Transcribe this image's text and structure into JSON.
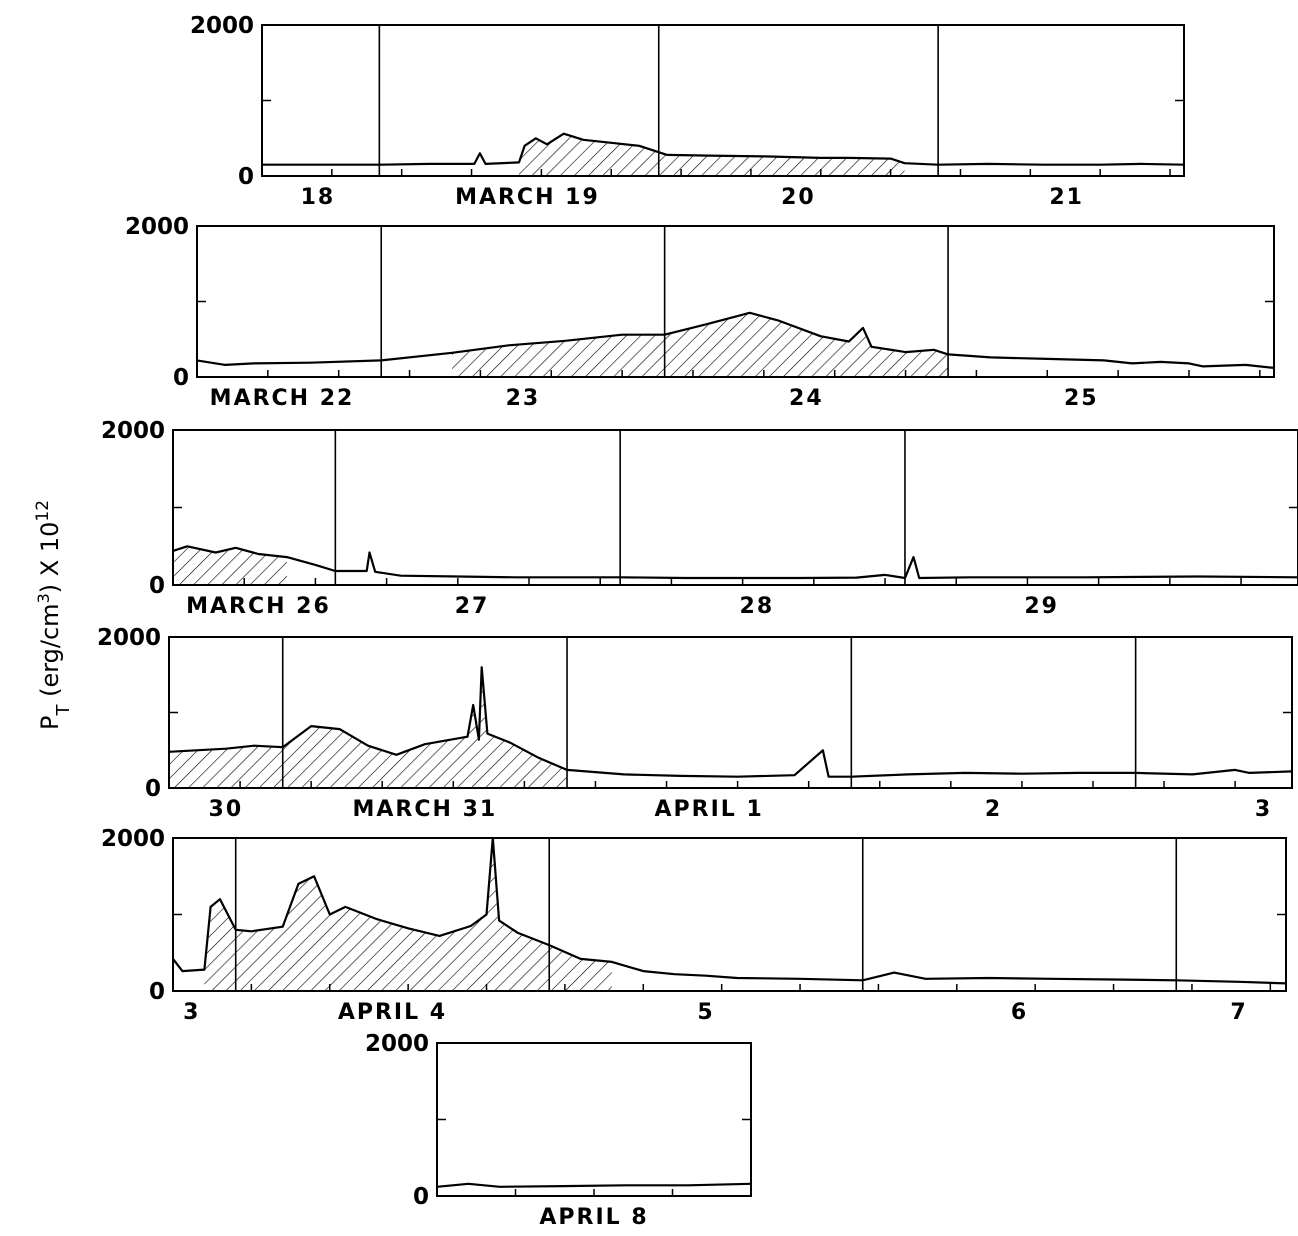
{
  "chart_data": {
    "type": "line",
    "y_axis_title": "P_T (erg/cm³) × 10¹²",
    "y_axis_title_parts": {
      "symbol": "P",
      "subscript": "T",
      "unit": " (erg/cm",
      "unit_exp": "3",
      "unit_close": ") X 10",
      "exponent": "12"
    },
    "ylim": [
      0,
      2000
    ],
    "y_tick_labels": [
      "0",
      "2000"
    ],
    "hatched_note": "shaded region beneath elevated intervals",
    "panels": [
      {
        "days": 3.3,
        "day_boundaries": [
          0.42,
          1.42,
          2.42
        ],
        "x_labels": [
          {
            "text": "18",
            "at": 0.2
          },
          {
            "text": "MARCH 19",
            "at": 0.95
          },
          {
            "text": "20",
            "at": 1.92
          },
          {
            "text": "21",
            "at": 2.88
          }
        ],
        "series": [
          [
            0,
            150
          ],
          [
            0.42,
            150
          ],
          [
            0.6,
            160
          ],
          [
            0.76,
            160
          ],
          [
            0.78,
            300
          ],
          [
            0.8,
            160
          ],
          [
            0.92,
            180
          ],
          [
            0.94,
            400
          ],
          [
            0.98,
            500
          ],
          [
            1.02,
            420
          ],
          [
            1.08,
            560
          ],
          [
            1.15,
            480
          ],
          [
            1.25,
            440
          ],
          [
            1.35,
            400
          ],
          [
            1.45,
            280
          ],
          [
            1.6,
            270
          ],
          [
            1.8,
            260
          ],
          [
            2.0,
            240
          ],
          [
            2.1,
            240
          ],
          [
            2.25,
            230
          ],
          [
            2.3,
            170
          ],
          [
            2.42,
            150
          ],
          [
            2.6,
            160
          ],
          [
            2.8,
            150
          ],
          [
            3.0,
            150
          ],
          [
            3.15,
            160
          ],
          [
            3.3,
            150
          ]
        ],
        "hatch_range": [
          0.92,
          2.3
        ]
      },
      {
        "days": 3.8,
        "day_boundaries": [
          0.65,
          1.65,
          2.65
        ],
        "x_labels": [
          {
            "text": "MARCH 22",
            "at": 0.3
          },
          {
            "text": "23",
            "at": 1.15
          },
          {
            "text": "24",
            "at": 2.15
          },
          {
            "text": "25",
            "at": 3.12
          }
        ],
        "series": [
          [
            0,
            220
          ],
          [
            0.1,
            160
          ],
          [
            0.2,
            180
          ],
          [
            0.4,
            190
          ],
          [
            0.65,
            220
          ],
          [
            0.9,
            320
          ],
          [
            1.1,
            420
          ],
          [
            1.3,
            480
          ],
          [
            1.5,
            560
          ],
          [
            1.65,
            560
          ],
          [
            1.8,
            700
          ],
          [
            1.95,
            850
          ],
          [
            2.05,
            750
          ],
          [
            2.2,
            540
          ],
          [
            2.3,
            470
          ],
          [
            2.35,
            650
          ],
          [
            2.38,
            400
          ],
          [
            2.5,
            330
          ],
          [
            2.6,
            360
          ],
          [
            2.65,
            300
          ],
          [
            2.8,
            260
          ],
          [
            3.0,
            240
          ],
          [
            3.2,
            220
          ],
          [
            3.3,
            180
          ],
          [
            3.4,
            200
          ],
          [
            3.5,
            180
          ],
          [
            3.55,
            140
          ],
          [
            3.7,
            160
          ],
          [
            3.8,
            120
          ]
        ],
        "hatch_range": [
          0.7,
          2.7
        ]
      },
      {
        "days": 3.95,
        "day_boundaries": [
          0.57,
          1.57,
          2.57
        ],
        "x_labels": [
          {
            "text": "MARCH 26",
            "at": 0.3
          },
          {
            "text": "27",
            "at": 1.05
          },
          {
            "text": "28",
            "at": 2.05
          },
          {
            "text": "29",
            "at": 3.05
          }
        ],
        "series": [
          [
            0,
            440
          ],
          [
            0.05,
            500
          ],
          [
            0.15,
            420
          ],
          [
            0.22,
            480
          ],
          [
            0.3,
            400
          ],
          [
            0.4,
            360
          ],
          [
            0.5,
            260
          ],
          [
            0.57,
            180
          ],
          [
            0.68,
            180
          ],
          [
            0.69,
            420
          ],
          [
            0.71,
            170
          ],
          [
            0.8,
            120
          ],
          [
            1.0,
            110
          ],
          [
            1.2,
            100
          ],
          [
            1.57,
            100
          ],
          [
            1.8,
            90
          ],
          [
            2.2,
            90
          ],
          [
            2.4,
            95
          ],
          [
            2.5,
            130
          ],
          [
            2.57,
            90
          ],
          [
            2.6,
            360
          ],
          [
            2.62,
            90
          ],
          [
            2.8,
            100
          ],
          [
            3.2,
            100
          ],
          [
            3.6,
            110
          ],
          [
            3.95,
            100
          ]
        ],
        "hatch_range": [
          0.0,
          0.45
        ]
      },
      {
        "days": 3.95,
        "day_boundaries": [
          0.4,
          1.4,
          2.4,
          3.4
        ],
        "x_labels": [
          {
            "text": "30",
            "at": 0.2
          },
          {
            "text": "MARCH 31",
            "at": 0.9
          },
          {
            "text": "APRIL 1",
            "at": 1.9
          },
          {
            "text": "2",
            "at": 2.9
          },
          {
            "text": "3",
            "at": 3.85
          }
        ],
        "series": [
          [
            0,
            480
          ],
          [
            0.2,
            520
          ],
          [
            0.3,
            560
          ],
          [
            0.4,
            540
          ],
          [
            0.5,
            820
          ],
          [
            0.6,
            780
          ],
          [
            0.7,
            560
          ],
          [
            0.8,
            440
          ],
          [
            0.9,
            580
          ],
          [
            1.05,
            680
          ],
          [
            1.07,
            1100
          ],
          [
            1.09,
            640
          ],
          [
            1.1,
            1600
          ],
          [
            1.12,
            720
          ],
          [
            1.2,
            600
          ],
          [
            1.3,
            400
          ],
          [
            1.4,
            240
          ],
          [
            1.6,
            180
          ],
          [
            1.8,
            160
          ],
          [
            2.0,
            150
          ],
          [
            2.2,
            170
          ],
          [
            2.3,
            500
          ],
          [
            2.32,
            150
          ],
          [
            2.4,
            150
          ],
          [
            2.6,
            180
          ],
          [
            2.8,
            200
          ],
          [
            3.0,
            190
          ],
          [
            3.2,
            200
          ],
          [
            3.4,
            200
          ],
          [
            3.6,
            180
          ],
          [
            3.75,
            240
          ],
          [
            3.8,
            200
          ],
          [
            3.95,
            220
          ]
        ],
        "hatch_range": [
          0.0,
          1.42
        ]
      },
      {
        "days": 3.55,
        "day_boundaries": [
          0.2,
          1.2,
          2.2,
          3.2
        ],
        "x_labels": [
          {
            "text": "3",
            "at": 0.06
          },
          {
            "text": "APRIL 4",
            "at": 0.7
          },
          {
            "text": "5",
            "at": 1.7
          },
          {
            "text": "6",
            "at": 2.7
          },
          {
            "text": "7",
            "at": 3.4
          }
        ],
        "series": [
          [
            0,
            420
          ],
          [
            0.03,
            260
          ],
          [
            0.1,
            280
          ],
          [
            0.12,
            1100
          ],
          [
            0.15,
            1200
          ],
          [
            0.2,
            800
          ],
          [
            0.25,
            780
          ],
          [
            0.35,
            840
          ],
          [
            0.4,
            1400
          ],
          [
            0.45,
            1500
          ],
          [
            0.5,
            1000
          ],
          [
            0.55,
            1100
          ],
          [
            0.65,
            940
          ],
          [
            0.75,
            820
          ],
          [
            0.85,
            720
          ],
          [
            0.95,
            850
          ],
          [
            1.0,
            1000
          ],
          [
            1.02,
            2000
          ],
          [
            1.04,
            920
          ],
          [
            1.1,
            760
          ],
          [
            1.2,
            600
          ],
          [
            1.3,
            420
          ],
          [
            1.4,
            380
          ],
          [
            1.5,
            260
          ],
          [
            1.6,
            220
          ],
          [
            1.7,
            200
          ],
          [
            1.8,
            170
          ],
          [
            2.0,
            160
          ],
          [
            2.2,
            140
          ],
          [
            2.3,
            240
          ],
          [
            2.4,
            160
          ],
          [
            2.6,
            170
          ],
          [
            2.8,
            160
          ],
          [
            3.0,
            150
          ],
          [
            3.2,
            140
          ],
          [
            3.4,
            120
          ],
          [
            3.55,
            100
          ]
        ],
        "hatch_range": [
          0.1,
          1.42
        ]
      },
      {
        "days": 1.0,
        "day_boundaries": [],
        "x_labels": [
          {
            "text": "APRIL 8",
            "at": 0.5
          }
        ],
        "series": [
          [
            0,
            120
          ],
          [
            0.1,
            160
          ],
          [
            0.2,
            120
          ],
          [
            0.4,
            130
          ],
          [
            0.6,
            140
          ],
          [
            0.8,
            140
          ],
          [
            1.0,
            160
          ]
        ],
        "hatch_range": null
      }
    ]
  }
}
